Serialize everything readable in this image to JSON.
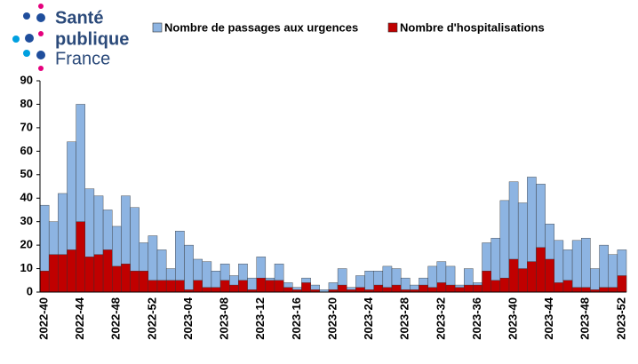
{
  "logo": {
    "line1": "Santé",
    "line2": "publique",
    "line3": "France"
  },
  "chart_data": {
    "type": "bar",
    "overlap": true,
    "categories": [
      "2022-40",
      null,
      null,
      null,
      "2022-44",
      null,
      null,
      null,
      "2022-48",
      null,
      null,
      null,
      "2022-52",
      null,
      null,
      null,
      "2023-04",
      null,
      null,
      null,
      "2023-08",
      null,
      null,
      null,
      "2023-12",
      null,
      null,
      null,
      "2023-16",
      null,
      null,
      null,
      "2023-20",
      null,
      null,
      null,
      "2023-24",
      null,
      null,
      null,
      "2023-28",
      null,
      null,
      null,
      "2023-32",
      null,
      null,
      null,
      "2023-36",
      null,
      null,
      null,
      "2023-40",
      null,
      null,
      null,
      "2023-44",
      null,
      null,
      null,
      "2023-48",
      null,
      null,
      null,
      "2023-52"
    ],
    "series": [
      {
        "name": "Nombre de passages aux urgences",
        "color": "#8db4e2",
        "values": [
          37,
          30,
          42,
          64,
          80,
          44,
          41,
          35,
          28,
          41,
          36,
          21,
          24,
          18,
          10,
          26,
          20,
          14,
          13,
          9,
          12,
          7,
          12,
          6,
          15,
          6,
          12,
          4,
          2,
          6,
          3,
          1,
          4,
          10,
          2,
          7,
          9,
          9,
          11,
          10,
          6,
          3,
          6,
          11,
          13,
          11,
          3,
          10,
          4,
          21,
          23,
          39,
          47,
          38,
          49,
          46,
          29,
          22,
          18,
          22,
          23,
          10,
          20,
          16,
          18
        ]
      },
      {
        "name": "Nombre d'hospitalisations",
        "color": "#c00000",
        "values": [
          9,
          16,
          16,
          18,
          30,
          15,
          16,
          18,
          11,
          12,
          9,
          9,
          5,
          5,
          5,
          5,
          1,
          5,
          2,
          2,
          5,
          3,
          5,
          1,
          6,
          5,
          5,
          2,
          1,
          4,
          1,
          0,
          1,
          3,
          1,
          2,
          1,
          3,
          2,
          3,
          1,
          1,
          3,
          2,
          4,
          3,
          2,
          3,
          3,
          9,
          5,
          6,
          14,
          10,
          13,
          19,
          14,
          4,
          5,
          2,
          2,
          1,
          2,
          2,
          7
        ]
      }
    ],
    "ylim": [
      0,
      90
    ],
    "yticks": [
      0,
      10,
      20,
      30,
      40,
      50,
      60,
      70,
      80,
      90
    ],
    "grid": false
  }
}
